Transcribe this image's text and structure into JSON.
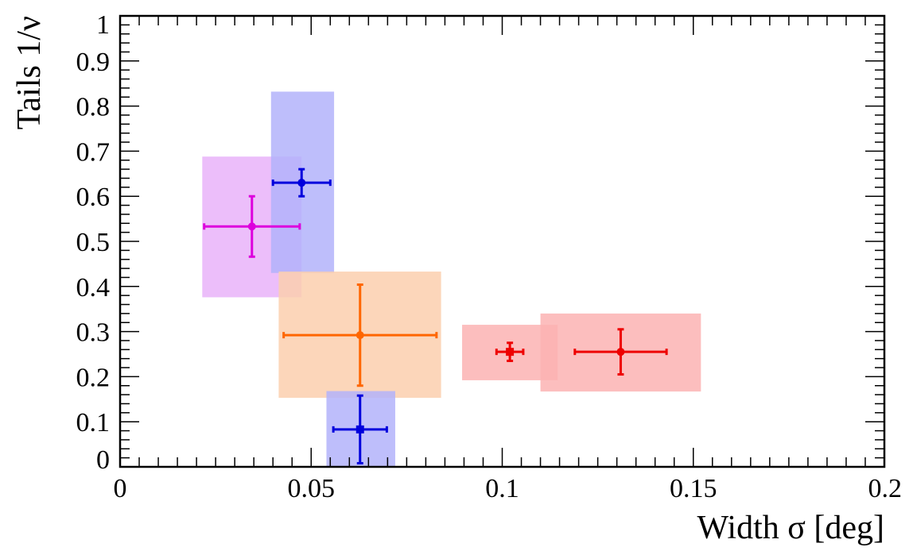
{
  "chart_data": {
    "type": "scatter",
    "xlabel": "Width σ [deg]",
    "ylabel": "Tails 1/ν",
    "xlim": [
      0,
      0.2
    ],
    "ylim": [
      0,
      1
    ],
    "x_ticks": [
      0,
      0.05,
      0.1,
      0.15,
      0.2
    ],
    "x_tick_labels": [
      "0",
      "0.05",
      "0.1",
      "0.15",
      "0.2"
    ],
    "y_ticks": [
      0,
      0.1,
      0.2,
      0.3,
      0.4,
      0.5,
      0.6,
      0.7,
      0.8,
      0.9,
      1
    ],
    "y_tick_labels": [
      "0",
      "0.1",
      "0.2",
      "0.3",
      "0.4",
      "0.5",
      "0.6",
      "0.7",
      "0.8",
      "0.9",
      "1"
    ],
    "grid": false,
    "legend": "none",
    "points": [
      {
        "color": "#dd00dd",
        "box_color": "#e9b3f9",
        "marker": "circle",
        "x": 0.0345,
        "y": 0.533,
        "x_err": 0.0125,
        "y_err": 0.067,
        "box_x": [
          0.0215,
          0.0475
        ],
        "box_y": [
          0.376,
          0.688
        ]
      },
      {
        "color": "#0000dd",
        "box_color": "#b3b3fa",
        "marker": "circle",
        "x": 0.0475,
        "y": 0.63,
        "x_err": 0.0075,
        "y_err": 0.03,
        "box_x": [
          0.0395,
          0.056
        ],
        "box_y": [
          0.43,
          0.832
        ]
      },
      {
        "color": "#ff6600",
        "box_color": "#fccfae",
        "marker": "circle",
        "x": 0.0628,
        "y": 0.292,
        "x_err": 0.02,
        "y_err": 0.112,
        "box_x": [
          0.0415,
          0.084
        ],
        "box_y": [
          0.153,
          0.433
        ]
      },
      {
        "color": "#0000dd",
        "box_color": "#b3b3fa",
        "marker": "square",
        "x": 0.0628,
        "y": 0.083,
        "x_err": 0.007,
        "y_err": 0.075,
        "box_x": [
          0.054,
          0.072
        ],
        "box_y": [
          0.0,
          0.168
        ]
      },
      {
        "color": "#ee0000",
        "box_color": "#fbb3b3",
        "marker": "square",
        "x": 0.102,
        "y": 0.255,
        "x_err": 0.0035,
        "y_err": 0.02,
        "box_x": [
          0.0895,
          0.1145
        ],
        "box_y": [
          0.192,
          0.315
        ]
      },
      {
        "color": "#ee0000",
        "box_color": "#fbb3b3",
        "marker": "circle",
        "x": 0.131,
        "y": 0.255,
        "x_err": 0.012,
        "y_err": 0.05,
        "box_x": [
          0.11,
          0.152
        ],
        "box_y": [
          0.167,
          0.34
        ]
      }
    ]
  }
}
